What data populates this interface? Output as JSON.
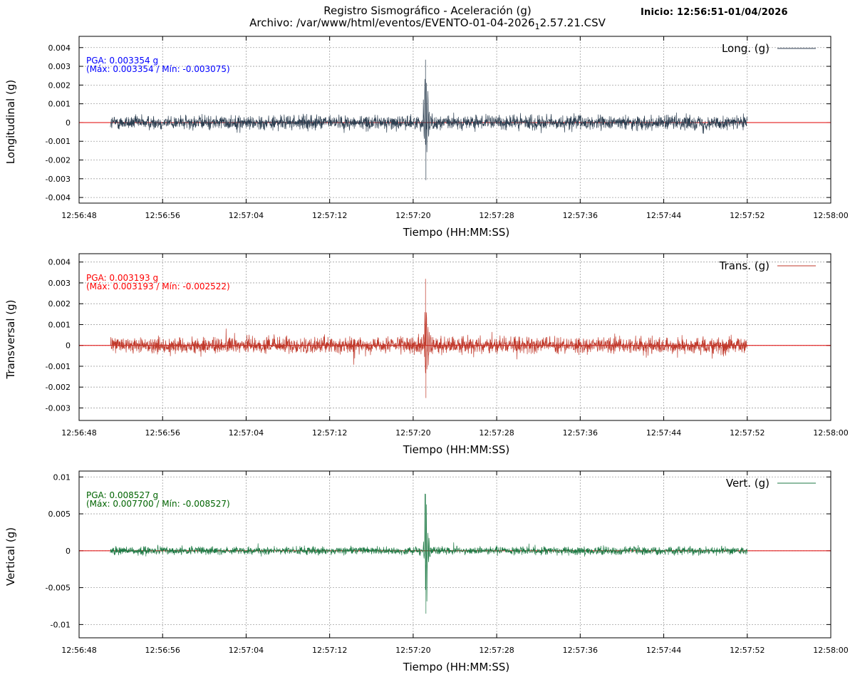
{
  "header": {
    "title": "Registro Sismográfico - Aceleración (g)",
    "file_prefix": "Archivo: /var/www/html/eventos/EVENTO-01-04-2026",
    "file_sub": "1",
    "file_suffix": "2.57.21.CSV",
    "start_info": "Inicio: 12:56:51-01/04/2026"
  },
  "colors": {
    "baseline": "#e00000",
    "grid": "#a0a0a0",
    "axis": "#000000"
  },
  "chart_data": [
    {
      "type": "line",
      "name": "Long. (g)",
      "ylabel": "Longitudinal (g)",
      "xlabel": "Tiempo (HH:MM:SS)",
      "color": "#2c3e50",
      "annotation_color": "#0000ff",
      "pga_text": "PGA: 0.003354 g",
      "range_text": "(Máx: 0.003354 / Mín: -0.003075)",
      "pga": 0.003354,
      "max": 0.003354,
      "min": -0.003075,
      "noise_amplitude": 0.00085,
      "ylim": [
        -0.0043,
        0.0046
      ],
      "yticks": [
        0.004,
        0.003,
        0.002,
        0.001,
        0,
        -0.001,
        -0.002,
        -0.003,
        -0.004
      ],
      "ytick_labels": [
        "0.004",
        "0.003",
        "0.002",
        "0.001",
        "0",
        "-0.001",
        "-0.002",
        "-0.003",
        "-0.004"
      ],
      "xlim": [
        "12:56:48",
        "12:58:00"
      ],
      "xticks": [
        "12:56:48",
        "12:56:56",
        "12:57:04",
        "12:57:12",
        "12:57:20",
        "12:57:28",
        "12:57:36",
        "12:57:44",
        "12:57:52",
        "12:58:00"
      ],
      "record_start": "12:56:51",
      "record_end": "12:57:52",
      "event_time": "12:57:21.1",
      "grid": true,
      "legend": "top-right"
    },
    {
      "type": "line",
      "name": "Trans. (g)",
      "ylabel": "Transversal (g)",
      "xlabel": "Tiempo (HH:MM:SS)",
      "color": "#c0392b",
      "annotation_color": "#ff0000",
      "pga_text": "PGA: 0.003193 g",
      "range_text": "(Máx: 0.003193 / Mín: -0.002522)",
      "pga": 0.003193,
      "max": 0.003193,
      "min": -0.002522,
      "noise_amplitude": 0.0009,
      "ylim": [
        -0.0036,
        0.0044
      ],
      "yticks": [
        0.004,
        0.003,
        0.002,
        0.001,
        0,
        -0.001,
        -0.002,
        -0.003
      ],
      "ytick_labels": [
        "0.004",
        "0.003",
        "0.002",
        "0.001",
        "0",
        "-0.001",
        "-0.002",
        "-0.003"
      ],
      "xlim": [
        "12:56:48",
        "12:58:00"
      ],
      "xticks": [
        "12:56:48",
        "12:56:56",
        "12:57:04",
        "12:57:12",
        "12:57:20",
        "12:57:28",
        "12:57:36",
        "12:57:44",
        "12:57:52",
        "12:58:00"
      ],
      "record_start": "12:56:51",
      "record_end": "12:57:52",
      "event_time": "12:57:21.1",
      "grid": true,
      "legend": "top-right"
    },
    {
      "type": "line",
      "name": "Vert. (g)",
      "ylabel": "Vertical (g)",
      "xlabel": "Tiempo (HH:MM:SS)",
      "color": "#1e7a45",
      "annotation_color": "#006400",
      "pga_text": "PGA: 0.008527 g",
      "range_text": "(Máx: 0.007700 / Mín: -0.008527)",
      "pga": 0.008527,
      "max": 0.0077,
      "min": -0.008527,
      "noise_amplitude": 0.0012,
      "ylim": [
        -0.0118,
        0.0108
      ],
      "yticks": [
        0.01,
        0.005,
        0,
        -0.005,
        -0.01
      ],
      "ytick_labels": [
        "0.01",
        "0.005",
        "0",
        "-0.005",
        "-0.01"
      ],
      "xlim": [
        "12:56:48",
        "12:58:00"
      ],
      "xticks": [
        "12:56:48",
        "12:56:56",
        "12:57:04",
        "12:57:12",
        "12:57:20",
        "12:57:28",
        "12:57:36",
        "12:57:44",
        "12:57:52",
        "12:58:00"
      ],
      "record_start": "12:56:51",
      "record_end": "12:57:52",
      "event_time": "12:57:21.1",
      "grid": true,
      "legend": "top-right"
    }
  ]
}
